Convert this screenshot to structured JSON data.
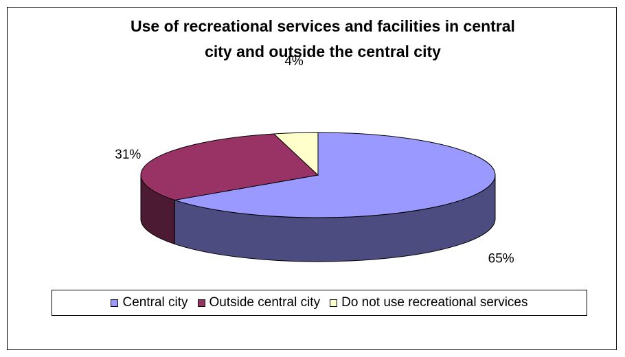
{
  "chart_data": {
    "type": "pie",
    "title": "Use of recreational services and facilities in central\ncity and outside the central city",
    "categories": [
      "Central city",
      "Outside central city",
      "Do not use recreational services"
    ],
    "values": [
      65,
      31,
      4
    ],
    "data_labels": [
      "65%",
      "31%",
      "4%"
    ],
    "colors": [
      "#9999FF",
      "#993366",
      "#FFFFCC"
    ],
    "side_colors": [
      "#4C4C80",
      "#4D1A33",
      "#808066"
    ],
    "legend_position": "bottom",
    "three_d": true
  }
}
